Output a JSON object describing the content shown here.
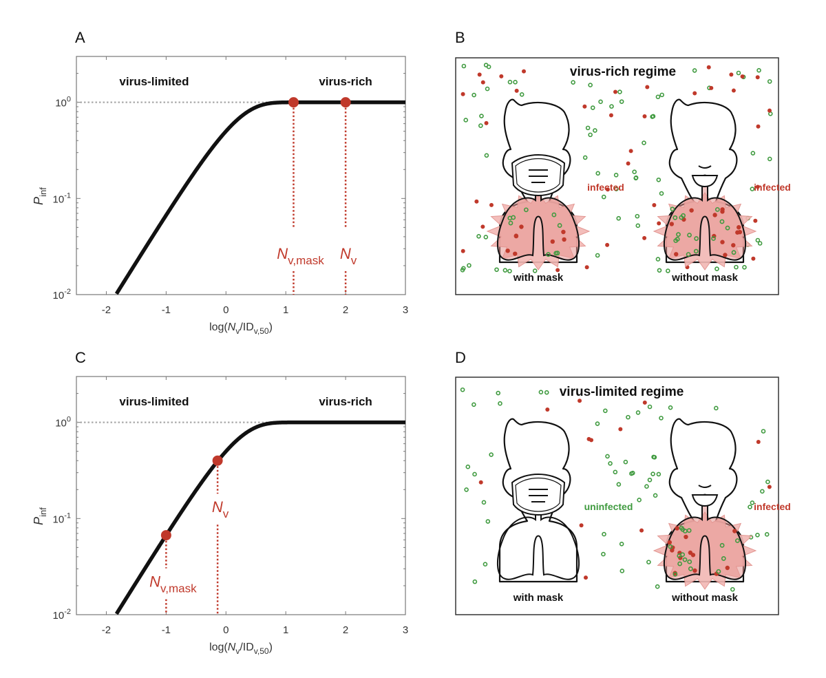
{
  "colors": {
    "curve": "#111111",
    "marker": "#c0392b",
    "infected": "#c0392b",
    "uninfected": "#3f9a3f",
    "lung_fill": "#f2b8b4",
    "axis": "#777777",
    "ref_line": "#aaaaaa"
  },
  "chart_data": [
    {
      "panel": "A",
      "type": "line",
      "xlabel": "log(N_v/ID_v,50)",
      "xlabel_parts": {
        "pre": "log(",
        "N": "N",
        "sub1": "v",
        "mid": "/ID",
        "sub2": "v,50",
        "post": ")"
      },
      "ylabel": "P_inf",
      "ylabel_parts": {
        "P": "P",
        "sub": "inf"
      },
      "yscale": "log",
      "xlim": [
        -2.5,
        3
      ],
      "ylim": [
        0.01,
        3
      ],
      "xticks": [
        -2,
        -1,
        0,
        1,
        2,
        3
      ],
      "xtick_labels": [
        "-2",
        "-1",
        "0",
        "1",
        "2",
        "3"
      ],
      "yticks": [
        0.01,
        0.1,
        1
      ],
      "ytick_labels": [
        {
          "base": "10",
          "exp": "-2"
        },
        {
          "base": "10",
          "exp": "-1"
        },
        {
          "base": "10",
          "exp": "0"
        }
      ],
      "curve": "P_inf = 1 - 2^(-10^x)",
      "reference_line": {
        "y": 1,
        "style": "dotted"
      },
      "regions": [
        {
          "label": "virus-limited",
          "x": -1.2
        },
        {
          "label": "virus-rich",
          "x": 2.0
        }
      ],
      "markers": [
        {
          "label": "N_v,mask",
          "N": "N",
          "sub": "v,mask",
          "x": 1.13,
          "y": 1.0
        },
        {
          "label": "N_v",
          "N": "N",
          "sub": "v",
          "x": 2.0,
          "y": 1.0
        }
      ]
    },
    {
      "panel": "C",
      "type": "line",
      "xlabel": "log(N_v/ID_v,50)",
      "xlabel_parts": {
        "pre": "log(",
        "N": "N",
        "sub1": "v",
        "mid": "/ID",
        "sub2": "v,50",
        "post": ")"
      },
      "ylabel": "P_inf",
      "ylabel_parts": {
        "P": "P",
        "sub": "inf"
      },
      "yscale": "log",
      "xlim": [
        -2.5,
        3
      ],
      "ylim": [
        0.01,
        3
      ],
      "xticks": [
        -2,
        -1,
        0,
        1,
        2,
        3
      ],
      "xtick_labels": [
        "-2",
        "-1",
        "0",
        "1",
        "2",
        "3"
      ],
      "yticks": [
        0.01,
        0.1,
        1
      ],
      "ytick_labels": [
        {
          "base": "10",
          "exp": "-2"
        },
        {
          "base": "10",
          "exp": "-1"
        },
        {
          "base": "10",
          "exp": "0"
        }
      ],
      "curve": "P_inf = 1 - 2^(-10^x)",
      "reference_line": {
        "y": 1,
        "style": "dotted"
      },
      "regions": [
        {
          "label": "virus-limited",
          "x": -1.2
        },
        {
          "label": "virus-rich",
          "x": 2.0
        }
      ],
      "markers": [
        {
          "label": "N_v,mask",
          "N": "N",
          "sub": "v,mask",
          "x": -1.0,
          "y": 0.067
        },
        {
          "label": "N_v",
          "N": "N",
          "sub": "v",
          "x": -0.14,
          "y": 0.4
        }
      ]
    }
  ],
  "illustrations": [
    {
      "panel": "B",
      "title": "virus-rich regime",
      "people": [
        {
          "caption": "with mask",
          "mask": true,
          "status": "infected",
          "status_color": "infected"
        },
        {
          "caption": "without mask",
          "mask": false,
          "status": "infected",
          "status_color": "infected"
        }
      ]
    },
    {
      "panel": "D",
      "title": "virus-limited regime",
      "people": [
        {
          "caption": "with mask",
          "mask": true,
          "status": "uninfected",
          "status_color": "uninfected"
        },
        {
          "caption": "without mask",
          "mask": false,
          "status": "infected",
          "status_color": "infected"
        }
      ]
    }
  ]
}
